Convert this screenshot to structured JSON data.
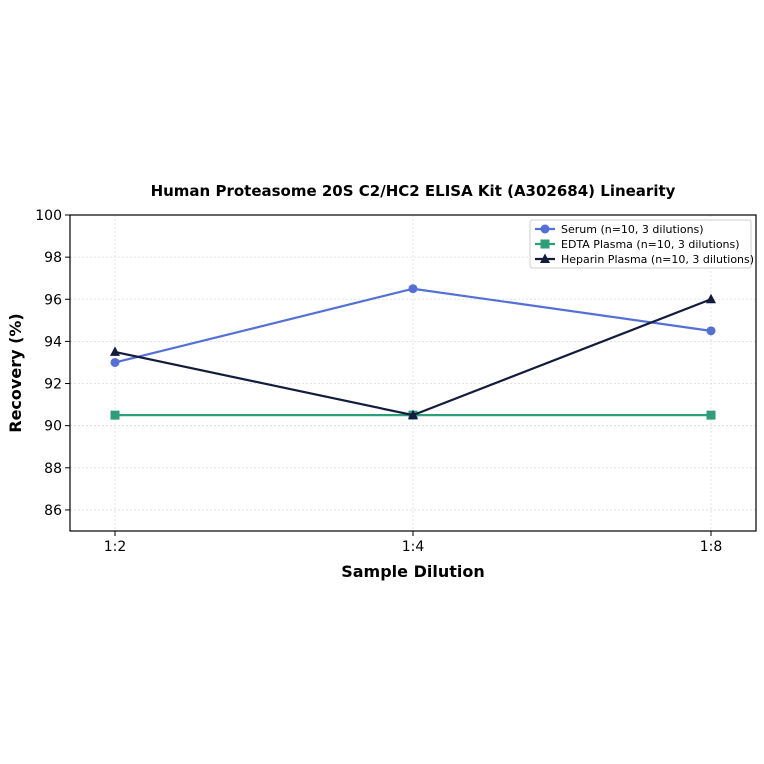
{
  "chart_data": {
    "type": "line",
    "title": "Human Proteasome 20S C2/HC2 ELISA Kit (A302684) Linearity",
    "xlabel": "Sample Dilution",
    "ylabel": "Recovery (%)",
    "categories": [
      "1:2",
      "1:4",
      "1:8"
    ],
    "ylim": [
      85,
      100
    ],
    "yticks": [
      86,
      88,
      90,
      92,
      94,
      96,
      98,
      100
    ],
    "grid": true,
    "legend_position": "top-right",
    "series": [
      {
        "name": "Serum (n=10, 3 dilutions)",
        "values": [
          93.0,
          96.5,
          94.5
        ],
        "color": "#5470d6",
        "marker": "circle"
      },
      {
        "name": "EDTA Plasma (n=10, 3 dilutions)",
        "values": [
          90.5,
          90.5,
          90.5
        ],
        "color": "#2e9e78",
        "marker": "square"
      },
      {
        "name": "Heparin Plasma (n=10, 3 dilutions)",
        "values": [
          93.5,
          90.5,
          96.0
        ],
        "color": "#121c3c",
        "marker": "triangle"
      }
    ]
  }
}
